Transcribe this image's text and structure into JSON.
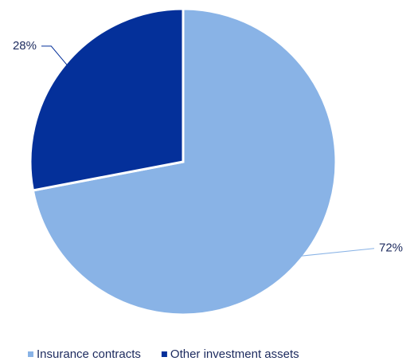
{
  "chart_data": {
    "type": "pie",
    "categories": [
      "Insurance contracts",
      "Other investment assets"
    ],
    "values": [
      72,
      28
    ],
    "value_labels": [
      "72%",
      "28%"
    ],
    "colors": [
      "#89b3e6",
      "#04309a"
    ],
    "legend": "bottom"
  }
}
